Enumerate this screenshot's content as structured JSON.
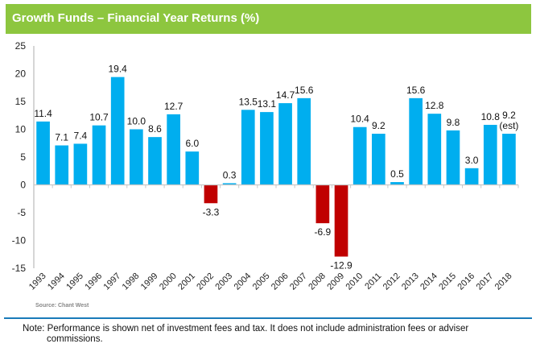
{
  "header": {
    "title": "Growth Funds – Financial Year Returns (%)"
  },
  "colors": {
    "header_bg": "#8dc63f",
    "positive": "#00aeef",
    "negative": "#c00000",
    "rule": "#1a7bb9"
  },
  "chart_data": {
    "type": "bar",
    "title": "Growth Funds – Financial Year Returns (%)",
    "xlabel": "",
    "ylabel": "",
    "categories": [
      "1993",
      "1994",
      "1995",
      "1996",
      "1997",
      "1998",
      "1999",
      "2000",
      "2001",
      "2002",
      "2003",
      "2004",
      "2005",
      "2006",
      "2007",
      "2008",
      "2009",
      "2010",
      "2011",
      "2012",
      "2013",
      "2014",
      "2015",
      "2016",
      "2017",
      "2018"
    ],
    "values": [
      11.4,
      7.1,
      7.4,
      10.7,
      19.4,
      10.0,
      8.6,
      12.7,
      6.0,
      -3.3,
      0.3,
      13.5,
      13.1,
      14.7,
      15.6,
      -6.9,
      -12.9,
      10.4,
      9.2,
      0.5,
      15.6,
      12.8,
      9.8,
      3.0,
      10.8,
      9.2
    ],
    "data_labels": [
      "11.4",
      "7.1",
      "7.4",
      "10.7",
      "19.4",
      "10.0",
      "8.6",
      "12.7",
      "6.0",
      "-3.3",
      "0.3",
      "13.5",
      "13.1",
      "14.7",
      "15.6",
      "-6.9",
      "-12.9",
      "10.4",
      "9.2",
      "0.5",
      "15.6",
      "12.8",
      "9.8",
      "3.0",
      "10.8",
      "9.2"
    ],
    "annotations": [
      {
        "category": "2018",
        "text": "(est)"
      }
    ],
    "ylim": [
      -15,
      25
    ],
    "yticks": [
      25,
      20,
      15,
      10,
      5,
      0,
      -5,
      -10,
      -15
    ],
    "grid": false,
    "legend": "none"
  },
  "footer": {
    "source": "Source: Chant West",
    "note_line1": "Note:  Performance is shown net of investment fees and tax.  It does not include administration fees or adviser",
    "note_line2": "commissions."
  }
}
